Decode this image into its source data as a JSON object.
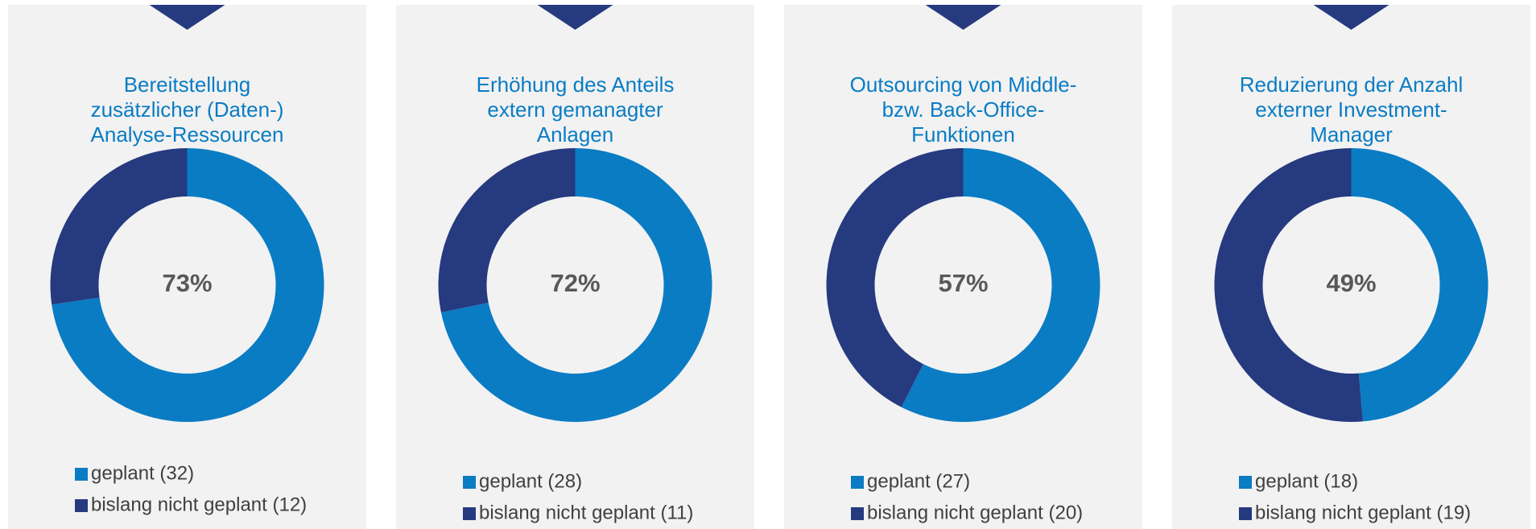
{
  "chart_data": [
    {
      "type": "donut",
      "title": [
        "Bereitstellung",
        "zusätzlicher (Daten-)",
        "Analyse-Ressourcen"
      ],
      "categories": [
        "geplant (32)",
        "bislang nicht geplant (12)"
      ],
      "values": [
        32,
        12
      ],
      "colors": [
        "#0a7cc4",
        "#263a80"
      ],
      "center": {
        "value": 73,
        "label": "73%"
      }
    },
    {
      "type": "donut",
      "title": [
        "Erhöhung des Anteils",
        "extern gemanagter",
        "Anlagen"
      ],
      "categories": [
        "geplant (28)",
        "bislang nicht geplant (11)"
      ],
      "values": [
        28,
        11
      ],
      "colors": [
        "#0a7cc4",
        "#263a80"
      ],
      "center": {
        "value": 72,
        "label": "72%"
      }
    },
    {
      "type": "donut",
      "title": [
        "Outsourcing von Middle-",
        "bzw. Back-Office-",
        "Funktionen"
      ],
      "categories": [
        "geplant (27)",
        "bislang nicht geplant (20)"
      ],
      "values": [
        27,
        20
      ],
      "colors": [
        "#0a7cc4",
        "#263a80"
      ],
      "center": {
        "value": 57,
        "label": "57%"
      }
    },
    {
      "type": "donut",
      "title": [
        "Reduzierung der Anzahl",
        "externer Investment-",
        "Manager"
      ],
      "categories": [
        "geplant (18)",
        "bislang nicht geplant (19)"
      ],
      "values": [
        18,
        19
      ],
      "colors": [
        "#0a7cc4",
        "#263a80"
      ],
      "center": {
        "value": 49,
        "label": "49%"
      }
    }
  ]
}
